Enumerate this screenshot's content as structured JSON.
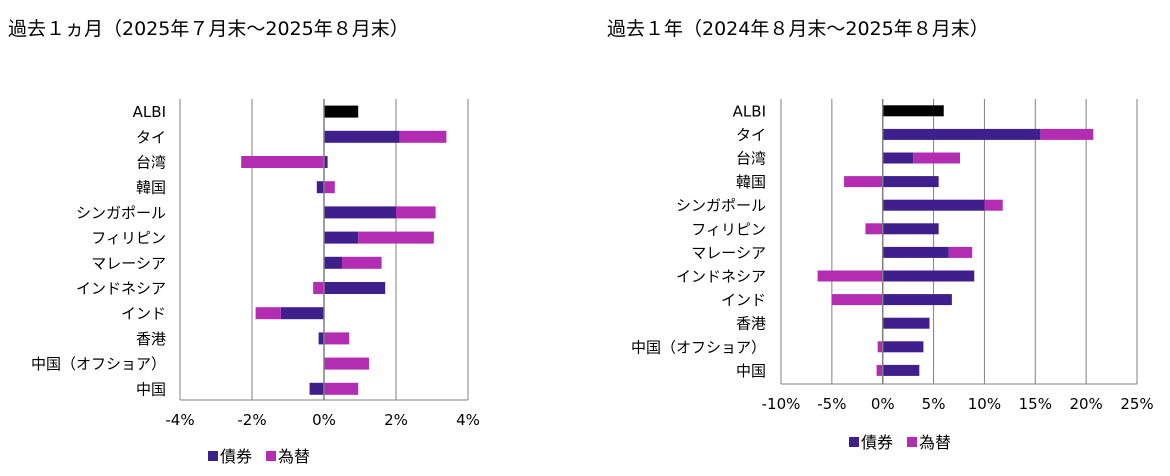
{
  "chart_data": [
    {
      "type": "bar",
      "title": "過去１ヵ月（2025年７月末～2025年８月末）",
      "categories": [
        "ALBI",
        "タイ",
        "台湾",
        "韓国",
        "シンガポール",
        "フィリピン",
        "マレーシア",
        "インドネシア",
        "インド",
        "香港",
        "中国（オフショア）",
        "中国"
      ],
      "series": [
        {
          "name": "債券",
          "values": [
            null,
            2.1,
            0.1,
            -0.2,
            2.0,
            0.95,
            0.5,
            1.7,
            -1.2,
            -0.15,
            0.0,
            -0.4
          ]
        },
        {
          "name": "為替",
          "values": [
            null,
            1.3,
            -2.3,
            0.3,
            1.1,
            2.1,
            1.1,
            -0.3,
            -0.7,
            0.7,
            1.25,
            0.95
          ]
        }
      ],
      "total": {
        "category": "ALBI",
        "value": 0.95,
        "color": "#000000"
      },
      "xlim": [
        -4,
        4
      ],
      "xticks": [
        "-4%",
        "-2%",
        "0%",
        "2%",
        "4%"
      ],
      "tick_values": [
        -4,
        -2,
        0,
        2,
        4
      ],
      "colors": {
        "債券": "#3f1f8c",
        "為替": "#b32db3"
      },
      "legend_position": "bottom",
      "grid": true
    },
    {
      "type": "bar",
      "title": "過去１年（2024年８月末～2025年８月末）",
      "categories": [
        "ALBI",
        "タイ",
        "台湾",
        "韓国",
        "シンガポール",
        "フィリピン",
        "マレーシア",
        "インドネシア",
        "インド",
        "香港",
        "中国（オフショア）",
        "中国"
      ],
      "series": [
        {
          "name": "債券",
          "values": [
            null,
            15.5,
            3.0,
            5.5,
            10.0,
            5.5,
            6.5,
            9.0,
            6.8,
            4.6,
            4.0,
            3.6
          ]
        },
        {
          "name": "為替",
          "values": [
            null,
            5.2,
            4.6,
            -3.8,
            1.8,
            -1.7,
            2.3,
            -6.4,
            -5.0,
            0.0,
            -0.5,
            -0.6
          ]
        }
      ],
      "total": {
        "category": "ALBI",
        "value": 6.0,
        "color": "#000000"
      },
      "xlim": [
        -10,
        25
      ],
      "xticks": [
        "-10%",
        "-5%",
        "0%",
        "5%",
        "10%",
        "15%",
        "20%",
        "25%"
      ],
      "tick_values": [
        -10,
        -5,
        0,
        5,
        10,
        15,
        20,
        25
      ],
      "colors": {
        "債券": "#3f1f8c",
        "為替": "#b32db3"
      },
      "legend_position": "bottom",
      "grid": true
    }
  ]
}
